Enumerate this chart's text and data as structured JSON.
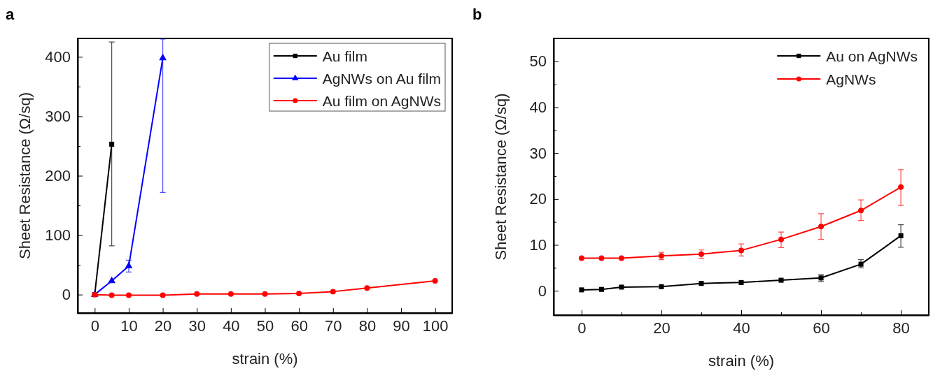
{
  "chart_data": [
    {
      "type": "line",
      "title": "a",
      "xlabel": "strain (%)",
      "ylabel": "Sheet Resistance (Ω/sq)",
      "xlim": [
        -5,
        105
      ],
      "xticks": [
        0,
        10,
        20,
        30,
        40,
        50,
        60,
        70,
        80,
        90,
        100
      ],
      "ylim": [
        -31,
        431
      ],
      "yticks": [
        0,
        {
          "value": 50,
          "label": null
        },
        100,
        {
          "value": 150,
          "label": null
        },
        200,
        {
          "value": 250,
          "label": null
        },
        300,
        {
          "value": 350,
          "label": null
        },
        400
      ],
      "legend": "top right",
      "grid": false,
      "series": [
        {
          "name": "Au film",
          "color": "#000000",
          "marker": "square",
          "x": [
            0,
            5
          ],
          "values": [
            0,
            253
          ],
          "errors": [
            null,
            [
              82,
              425
            ]
          ]
        },
        {
          "name": "AgNWs on Au film",
          "color": "#0000ff",
          "marker": "triangle",
          "x": [
            0,
            5,
            10,
            20
          ],
          "values": [
            0,
            23,
            48,
            398
          ],
          "errors": [
            null,
            null,
            [
              38,
              58
            ],
            [
              172,
              430
            ]
          ]
        },
        {
          "name": "Au film on AgNWs",
          "color": "#ff0000",
          "marker": "circle",
          "x": [
            0,
            5,
            10,
            20,
            30,
            40,
            50,
            60,
            70,
            80,
            100
          ],
          "values": [
            0,
            -1,
            -1,
            -1,
            1,
            1,
            1,
            2,
            5,
            11,
            23
          ]
        }
      ]
    },
    {
      "type": "line",
      "title": "b",
      "xlabel": "strain (%)",
      "ylabel": "Sheet Resistance (Ω/sq)",
      "xlim": [
        -7,
        87
      ],
      "xticks": [
        0,
        {
          "value": 10,
          "label": null
        },
        20,
        {
          "value": 30,
          "label": null
        },
        40,
        {
          "value": 50,
          "label": null
        },
        60,
        {
          "value": 70,
          "label": null
        },
        80
      ],
      "ylim": [
        -5.3,
        55
      ],
      "yticks": [
        0,
        {
          "value": 5,
          "label": null
        },
        10,
        {
          "value": 15,
          "label": null
        },
        20,
        {
          "value": 25,
          "label": null
        },
        30,
        {
          "value": 35,
          "label": null
        },
        40,
        {
          "value": 45,
          "label": null
        },
        50
      ],
      "legend": "top right",
      "grid": false,
      "series": [
        {
          "name": "Au on AgNWs",
          "color": "#000000",
          "marker": "square",
          "x": [
            0,
            5,
            10,
            20,
            30,
            40,
            50,
            60,
            70,
            80
          ],
          "values": [
            0.2,
            0.3,
            0.8,
            0.9,
            1.6,
            1.8,
            2.3,
            2.8,
            5.8,
            12
          ],
          "errors": [
            null,
            null,
            null,
            null,
            null,
            null,
            null,
            [
              2.0,
              3.5
            ],
            [
              5.0,
              6.8
            ],
            [
              9.5,
              14.4
            ]
          ]
        },
        {
          "name": "AgNWs",
          "color": "#ff0000",
          "marker": "circle",
          "x": [
            0,
            5,
            10,
            20,
            30,
            40,
            50,
            60,
            70,
            80
          ],
          "values": [
            7.1,
            7.1,
            7.1,
            7.6,
            8.0,
            8.8,
            11.2,
            14.0,
            17.5,
            22.6
          ],
          "errors": [
            null,
            null,
            null,
            [
              6.8,
              8.4
            ],
            [
              7.1,
              8.9
            ],
            [
              7.6,
              10.2
            ],
            [
              9.4,
              12.8
            ],
            [
              11.2,
              16.8
            ],
            [
              15.3,
              19.8
            ],
            [
              18.6,
              26.4
            ]
          ]
        }
      ]
    }
  ]
}
